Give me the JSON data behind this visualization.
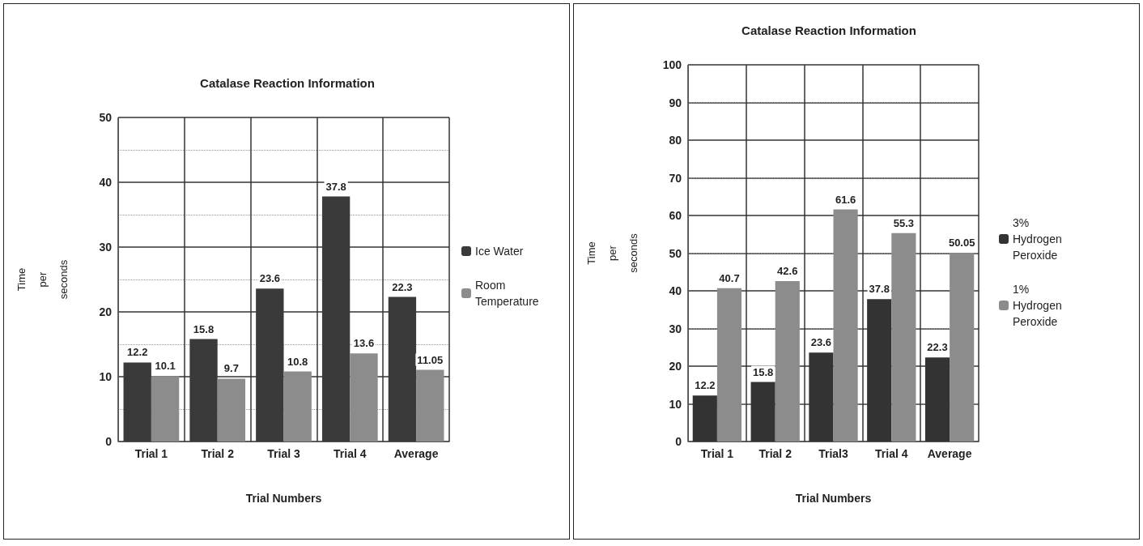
{
  "chart_data": [
    {
      "type": "bar",
      "title": "Catalase Reaction Information",
      "xlabel": "Trial Numbers",
      "ylabel": "Time per seconds",
      "categories": [
        "Trial 1",
        "Trial 2",
        "Trial 3",
        "Trial 4",
        "Average"
      ],
      "series": [
        {
          "name": "Ice Water",
          "color": "#3a3a3a",
          "values": [
            12.2,
            15.8,
            23.6,
            37.8,
            22.3
          ]
        },
        {
          "name": "Room Temperature",
          "color": "#8c8c8c",
          "values": [
            10.1,
            9.7,
            10.8,
            13.6,
            11.05
          ]
        }
      ],
      "ylim": [
        0,
        50
      ],
      "yticks": [
        0,
        10,
        20,
        30,
        40,
        50
      ],
      "grid": true,
      "legend": "right",
      "data_labels": true
    },
    {
      "type": "bar",
      "title": "Catalase Reaction Information",
      "xlabel": "Trial Numbers",
      "ylabel": "Time per seconds",
      "categories": [
        "Trial 1",
        "Trial 2",
        "Trial3",
        "Trial 4",
        "Average"
      ],
      "series": [
        {
          "name": "3% Hydrogen Peroxide",
          "color": "#333333",
          "values": [
            12.2,
            15.8,
            23.6,
            37.8,
            22.3
          ]
        },
        {
          "name": "1% Hydrogen Peroxide",
          "color": "#8c8c8c",
          "values": [
            40.7,
            42.6,
            61.6,
            55.3,
            50.05
          ]
        }
      ],
      "ylim": [
        0,
        100
      ],
      "yticks": [
        0,
        10,
        20,
        30,
        40,
        50,
        60,
        70,
        80,
        90,
        100
      ],
      "grid": true,
      "legend": "right",
      "data_labels": true
    }
  ]
}
